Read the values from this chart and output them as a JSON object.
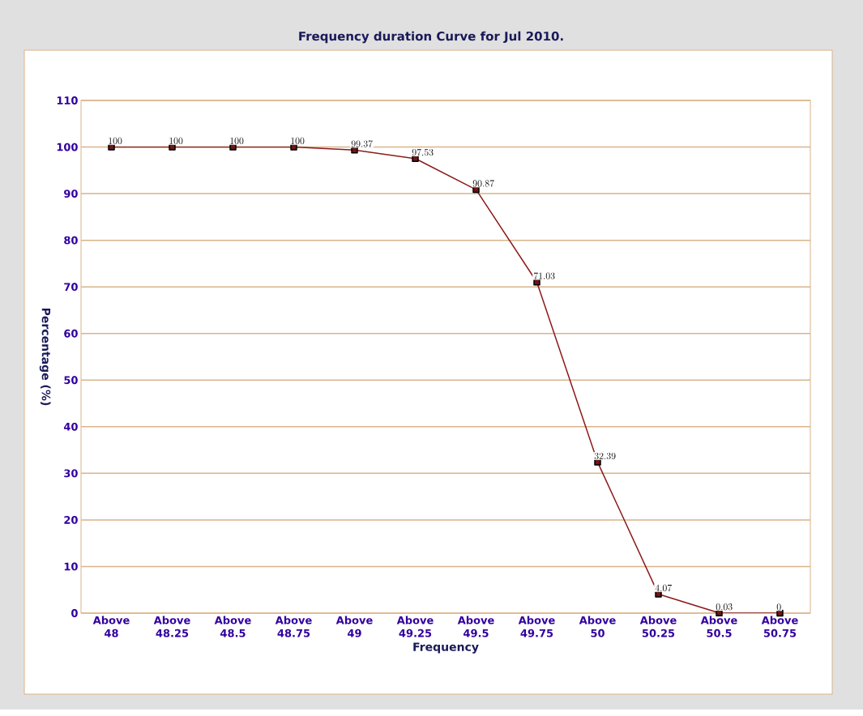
{
  "chart_data": {
    "type": "line",
    "title": "Frequency duration Curve for Jul 2010.",
    "xlabel": "Frequency",
    "ylabel": "Percentage (%)",
    "categories": [
      "Above 48",
      "Above 48.25",
      "Above 48.5",
      "Above 48.75",
      "Above 49",
      "Above 49.25",
      "Above 49.5",
      "Above 49.75",
      "Above 50",
      "Above 50.25",
      "Above 50.5",
      "Above 50.75"
    ],
    "values": [
      100,
      100,
      100,
      100,
      99.37,
      97.53,
      90.87,
      71.03,
      32.39,
      4.07,
      0.03,
      0
    ],
    "color": "#8b1a1a",
    "marker": "square",
    "data_labels": true,
    "grid": "y",
    "ylim": [
      0,
      110
    ],
    "yticks": [
      0,
      10,
      20,
      30,
      40,
      50,
      60,
      70,
      80,
      90,
      100,
      110
    ]
  }
}
